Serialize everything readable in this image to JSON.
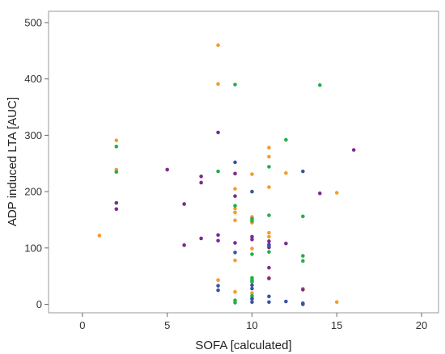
{
  "chart_data": {
    "type": "scatter",
    "title": "",
    "xlabel": "SOFA [calculated]",
    "ylabel": "ADP induced LTA [AUC]",
    "xlim": [
      -2,
      21
    ],
    "ylim": [
      -15,
      520
    ],
    "xticks": [
      0,
      5,
      10,
      15,
      20
    ],
    "yticks": [
      0,
      100,
      200,
      300,
      400,
      500
    ],
    "grid": false,
    "legend": "none",
    "colors": {
      "orange": "#f39c2d",
      "green": "#27ae4a",
      "purple": "#7b2d8e",
      "blue": "#3a55a4"
    },
    "series": [
      {
        "color_key": "orange",
        "points": [
          [
            1,
            122
          ],
          [
            2,
            291
          ],
          [
            2,
            239
          ],
          [
            8,
            460
          ],
          [
            8,
            391
          ],
          [
            8,
            43
          ],
          [
            9,
            205
          ],
          [
            9,
            170
          ],
          [
            9,
            163
          ],
          [
            9,
            149
          ],
          [
            9,
            78
          ],
          [
            9,
            22
          ],
          [
            10,
            231
          ],
          [
            10,
            155
          ],
          [
            10,
            145
          ],
          [
            10,
            99
          ],
          [
            10,
            42
          ],
          [
            10,
            20
          ],
          [
            11,
            278
          ],
          [
            11,
            262
          ],
          [
            11,
            208
          ],
          [
            11,
            127
          ],
          [
            11,
            120
          ],
          [
            11,
            47
          ],
          [
            12,
            233
          ],
          [
            13,
            28
          ],
          [
            15,
            198
          ],
          [
            15,
            4
          ]
        ]
      },
      {
        "color_key": "green",
        "points": [
          [
            2,
            280
          ],
          [
            2,
            235
          ],
          [
            8,
            236
          ],
          [
            9,
            390
          ],
          [
            9,
            175
          ],
          [
            9,
            7
          ],
          [
            9,
            3
          ],
          [
            10,
            152
          ],
          [
            10,
            148
          ],
          [
            10,
            89
          ],
          [
            10,
            47
          ],
          [
            10,
            43
          ],
          [
            10,
            40
          ],
          [
            10,
            15
          ],
          [
            10,
            10
          ],
          [
            11,
            244
          ],
          [
            11,
            158
          ],
          [
            11,
            93
          ],
          [
            12,
            292
          ],
          [
            13,
            156
          ],
          [
            13,
            86
          ],
          [
            13,
            77
          ],
          [
            14,
            389
          ]
        ]
      },
      {
        "color_key": "purple",
        "points": [
          [
            2,
            180
          ],
          [
            2,
            169
          ],
          [
            5,
            239
          ],
          [
            6,
            178
          ],
          [
            6,
            105
          ],
          [
            7,
            227
          ],
          [
            7,
            216
          ],
          [
            7,
            117
          ],
          [
            8,
            305
          ],
          [
            8,
            123
          ],
          [
            8,
            113
          ],
          [
            9,
            232
          ],
          [
            9,
            192
          ],
          [
            9,
            109
          ],
          [
            10,
            120
          ],
          [
            10,
            115
          ],
          [
            11,
            112
          ],
          [
            11,
            106
          ],
          [
            11,
            101
          ],
          [
            11,
            65
          ],
          [
            11,
            46
          ],
          [
            12,
            108
          ],
          [
            13,
            26
          ],
          [
            14,
            197
          ],
          [
            16,
            274
          ]
        ]
      },
      {
        "color_key": "blue",
        "points": [
          [
            8,
            33
          ],
          [
            8,
            25
          ],
          [
            9,
            252
          ],
          [
            9,
            92
          ],
          [
            10,
            200
          ],
          [
            10,
            34
          ],
          [
            10,
            28
          ],
          [
            10,
            10
          ],
          [
            10,
            4
          ],
          [
            11,
            104
          ],
          [
            11,
            14
          ],
          [
            11,
            4
          ],
          [
            12,
            5
          ],
          [
            13,
            236
          ],
          [
            13,
            2
          ],
          [
            13,
            0
          ]
        ]
      }
    ]
  }
}
